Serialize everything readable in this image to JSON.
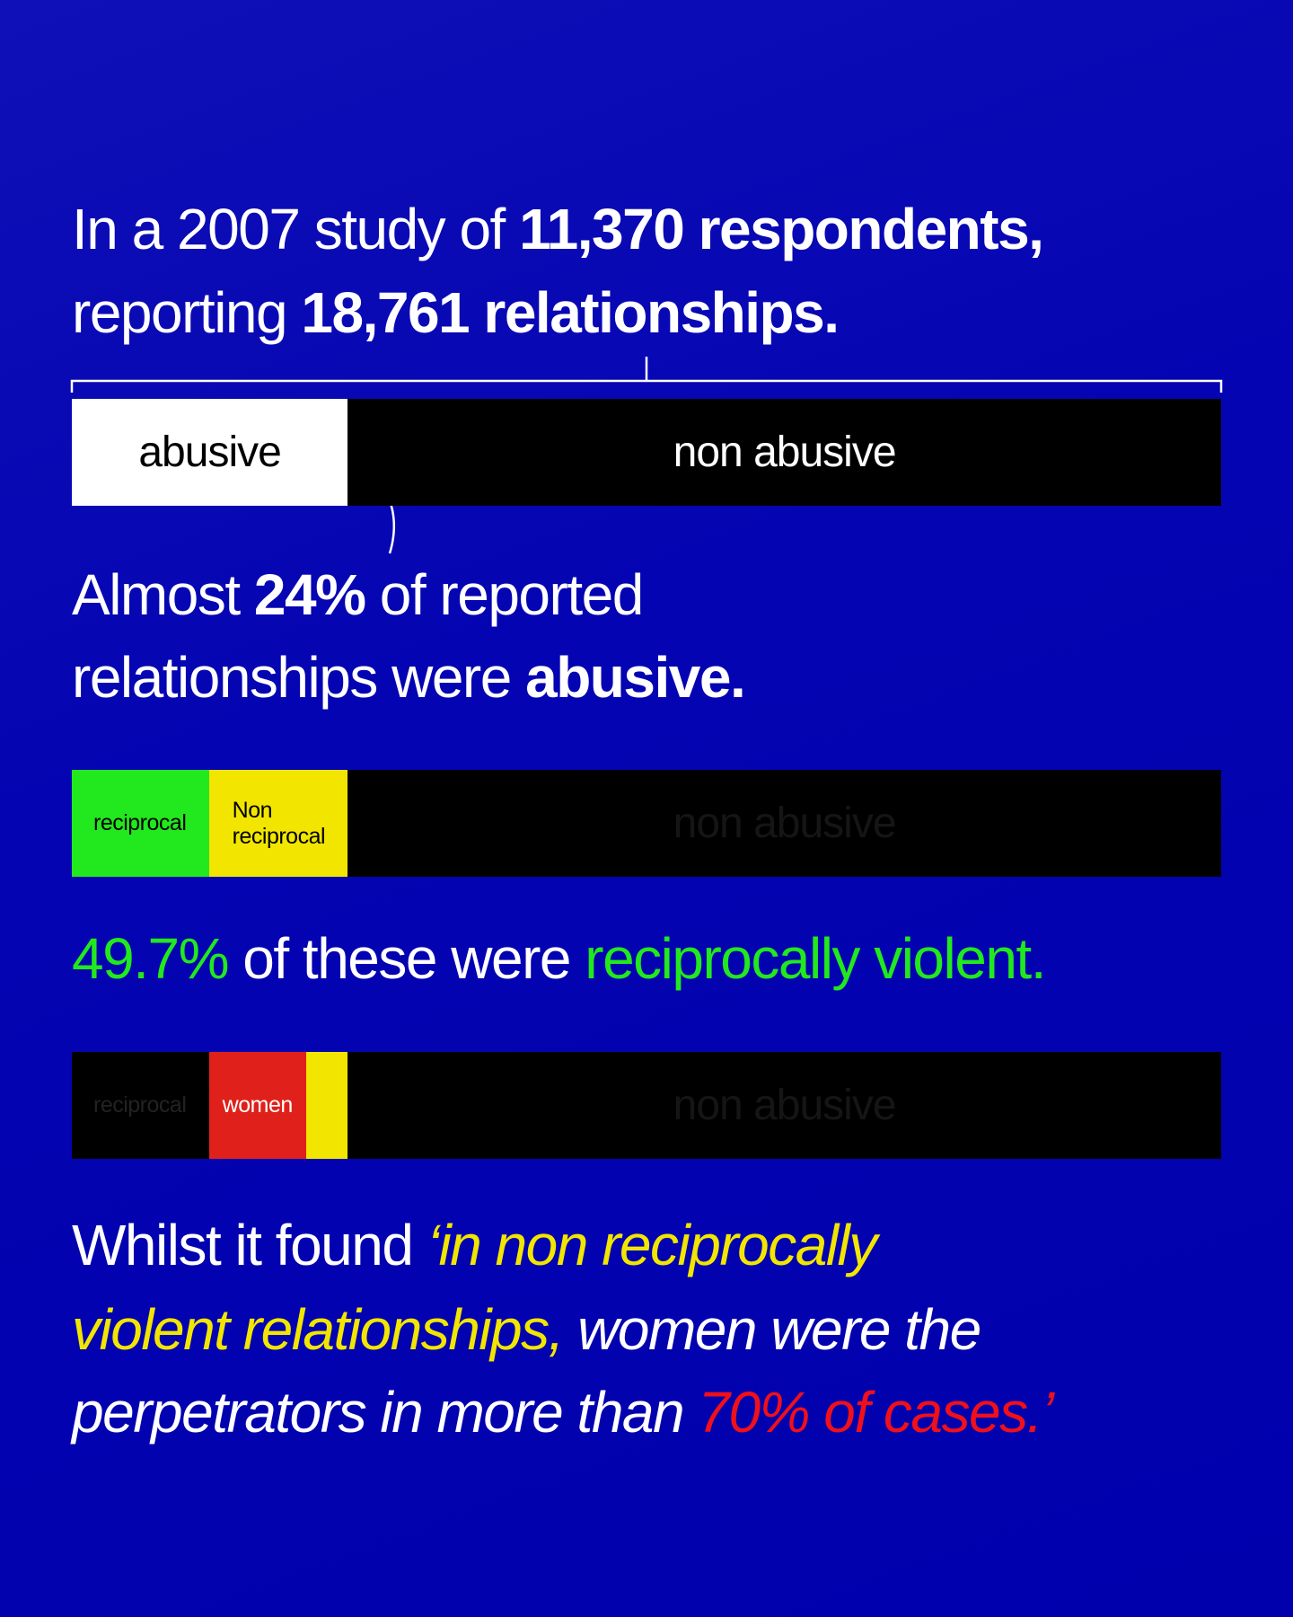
{
  "heading": {
    "line1_a": "In a 2007 study of ",
    "line1_b": "11,370 respondents,",
    "line2_a": "reporting ",
    "line2_b": "18,761 relationships."
  },
  "statement1": {
    "line1_a": "Almost ",
    "line1_b": "24%",
    "line1_c": " of reported",
    "line2_a": "relationships were ",
    "line2_b": "abusive."
  },
  "statement2": {
    "a": "49.7%",
    "b": " of these were ",
    "c": "reciprocally violent."
  },
  "statement3": {
    "line1_a": "Whilst it found ",
    "line1_b": "‘in non reciprocally",
    "line2_a": "violent relationships,",
    "line2_b": " women were the",
    "line3_a": "perpetrators in more than ",
    "line3_b": "70% of cases.’"
  },
  "colors": {
    "background": "#0505b0",
    "green": "#22e81e",
    "yellow": "#f2e600",
    "red": "#e0201a",
    "black": "#000000",
    "white": "#ffffff"
  },
  "chart_data": [
    {
      "type": "bar",
      "orientation": "horizontal-stacked",
      "segments": [
        {
          "label": "abusive",
          "value": 24
        },
        {
          "label": "non abusive",
          "value": 76
        }
      ]
    },
    {
      "type": "bar",
      "orientation": "horizontal-stacked",
      "segments": [
        {
          "label": "reciprocal",
          "value": 49.7,
          "of": "abusive"
        },
        {
          "label": "Non reciprocal",
          "value": 50.3,
          "of": "abusive"
        },
        {
          "label": "non abusive",
          "value": 76
        }
      ]
    },
    {
      "type": "bar",
      "orientation": "horizontal-stacked",
      "segments": [
        {
          "label": "reciprocal",
          "value": 49.7,
          "of": "abusive"
        },
        {
          "label": "women",
          "value": 70,
          "of": "Non reciprocal"
        },
        {
          "label": "",
          "value": 30,
          "of": "Non reciprocal"
        },
        {
          "label": "non abusive",
          "value": 76
        }
      ]
    }
  ]
}
